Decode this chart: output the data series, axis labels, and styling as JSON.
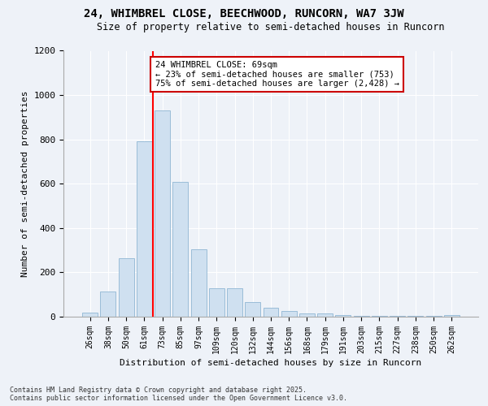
{
  "title": "24, WHIMBREL CLOSE, BEECHWOOD, RUNCORN, WA7 3JW",
  "subtitle": "Size of property relative to semi-detached houses in Runcorn",
  "xlabel": "Distribution of semi-detached houses by size in Runcorn",
  "ylabel": "Number of semi-detached properties",
  "categories": [
    "26sqm",
    "38sqm",
    "50sqm",
    "61sqm",
    "73sqm",
    "85sqm",
    "97sqm",
    "109sqm",
    "120sqm",
    "132sqm",
    "144sqm",
    "156sqm",
    "168sqm",
    "179sqm",
    "191sqm",
    "203sqm",
    "215sqm",
    "227sqm",
    "238sqm",
    "250sqm",
    "262sqm"
  ],
  "values": [
    20,
    115,
    265,
    790,
    930,
    610,
    305,
    130,
    130,
    65,
    40,
    25,
    15,
    15,
    8,
    5,
    5,
    5,
    2,
    2,
    8
  ],
  "bar_color": "#cfe0f0",
  "bar_edge_color": "#9abdd8",
  "vline_color": "red",
  "annotation_text": "24 WHIMBREL CLOSE: 69sqm\n← 23% of semi-detached houses are smaller (753)\n75% of semi-detached houses are larger (2,428) →",
  "annotation_box_color": "white",
  "annotation_box_edge": "#cc0000",
  "ylim": [
    0,
    1200
  ],
  "yticks": [
    0,
    200,
    400,
    600,
    800,
    1000,
    1200
  ],
  "footnote": "Contains HM Land Registry data © Crown copyright and database right 2025.\nContains public sector information licensed under the Open Government Licence v3.0.",
  "bg_color": "#eef2f8",
  "plot_bg_color": "#eef2f8"
}
